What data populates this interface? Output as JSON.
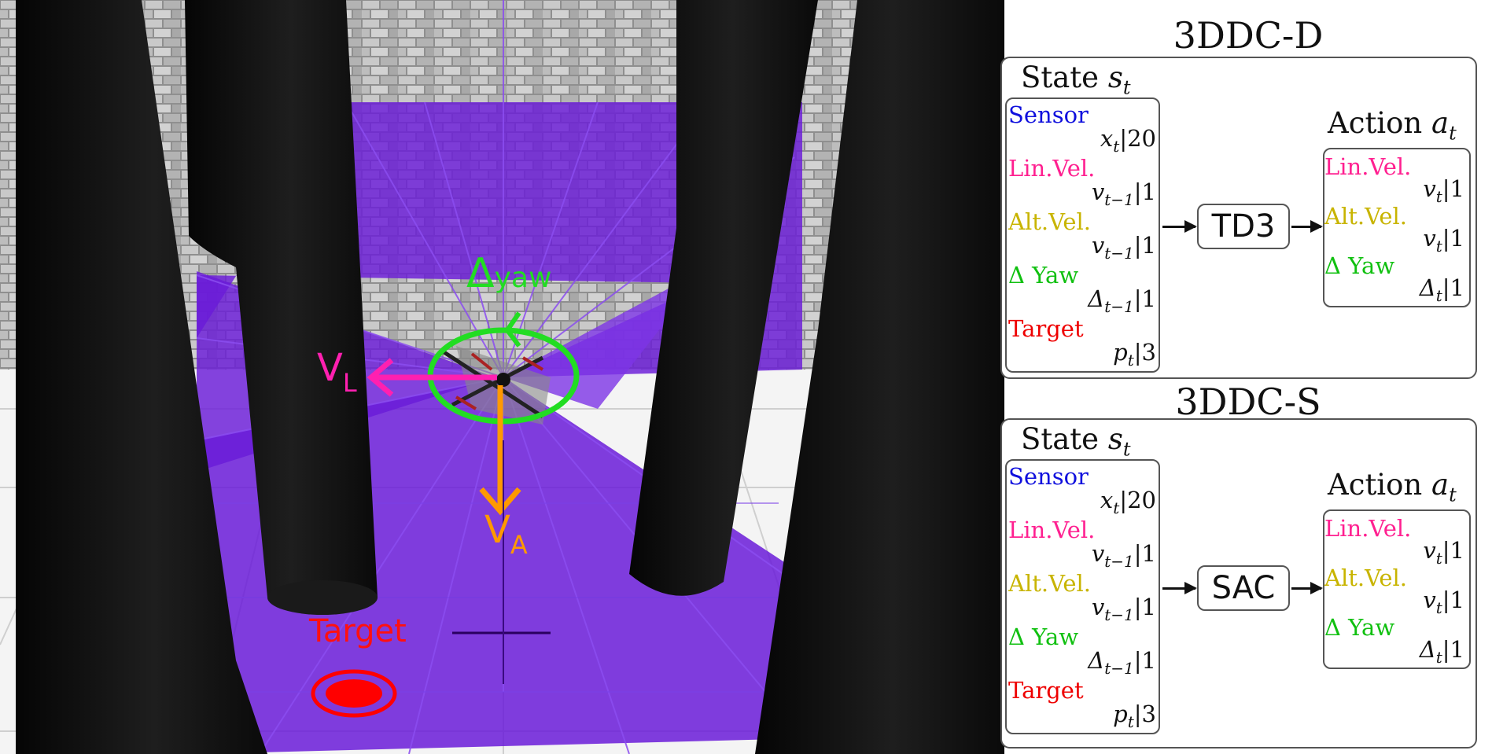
{
  "scene": {
    "labels": {
      "delta": "Δ",
      "delta_sub": "yaw",
      "vl": "V",
      "vl_sub": "L",
      "va": "V",
      "va_sub": "A",
      "target": "Target"
    },
    "colors": {
      "delta": "#22dd22",
      "vl": "#ff20b0",
      "va": "#ff9900",
      "target": "#ff0000",
      "laser": "#6a1bd8",
      "pillar": "#151515"
    }
  },
  "panels": [
    {
      "title": "3DDC-D",
      "state_header": "State",
      "state_symbol": "s",
      "state_sub": "t",
      "algorithm": "TD3",
      "action_header": "Action",
      "action_symbol": "a",
      "action_sub": "t",
      "state_items": [
        {
          "label": "Sensor",
          "color": "#1010dd",
          "var": "x",
          "sub": "t",
          "dim": "|20"
        },
        {
          "label": "Lin.Vel.",
          "color": "#ff2090",
          "var": "v",
          "sub": "t−1",
          "dim": "|1"
        },
        {
          "label": "Alt.Vel.",
          "color": "#c8b400",
          "var": "v",
          "sub": "t−1",
          "dim": "|1"
        },
        {
          "label": "Δ Yaw",
          "color": "#10c010",
          "var": "Δ",
          "sub": "t−1",
          "dim": "|1"
        },
        {
          "label": "Target",
          "color": "#ee0000",
          "var": "p",
          "sub": "t",
          "dim": "|3"
        }
      ],
      "action_items": [
        {
          "label": "Lin.Vel.",
          "color": "#ff2090",
          "var": "v",
          "sub": "t",
          "dim": "|1"
        },
        {
          "label": "Alt.Vel.",
          "color": "#c8b400",
          "var": "v",
          "sub": "t",
          "dim": "|1"
        },
        {
          "label": "Δ Yaw",
          "color": "#10c010",
          "var": "Δ",
          "sub": "t",
          "dim": "|1"
        }
      ]
    },
    {
      "title": "3DDC-S",
      "state_header": "State",
      "state_symbol": "s",
      "state_sub": "t",
      "algorithm": "SAC",
      "action_header": "Action",
      "action_symbol": "a",
      "action_sub": "t",
      "state_items": [
        {
          "label": "Sensor",
          "color": "#1010dd",
          "var": "x",
          "sub": "t",
          "dim": "|20"
        },
        {
          "label": "Lin.Vel.",
          "color": "#ff2090",
          "var": "v",
          "sub": "t−1",
          "dim": "|1"
        },
        {
          "label": "Alt.Vel.",
          "color": "#c8b400",
          "var": "v",
          "sub": "t−1",
          "dim": "|1"
        },
        {
          "label": "Δ Yaw",
          "color": "#10c010",
          "var": "Δ",
          "sub": "t−1",
          "dim": "|1"
        },
        {
          "label": "Target",
          "color": "#ee0000",
          "var": "p",
          "sub": "t",
          "dim": "|3"
        }
      ],
      "action_items": [
        {
          "label": "Lin.Vel.",
          "color": "#ff2090",
          "var": "v",
          "sub": "t",
          "dim": "|1"
        },
        {
          "label": "Alt.Vel.",
          "color": "#c8b400",
          "var": "v",
          "sub": "t",
          "dim": "|1"
        },
        {
          "label": "Δ Yaw",
          "color": "#10c010",
          "var": "Δ",
          "sub": "t",
          "dim": "|1"
        }
      ]
    }
  ]
}
